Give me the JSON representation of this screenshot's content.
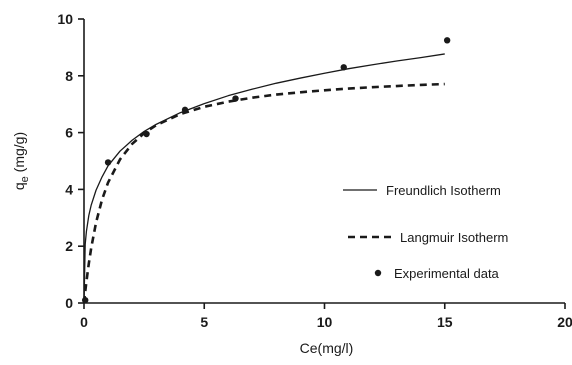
{
  "chart_data": {
    "type": "scatter",
    "xlabel": "Ce(mg/l)",
    "ylabel_main": "q",
    "ylabel_sub": "e",
    "ylabel_unit": " (mg/g)",
    "xlim": [
      0,
      20
    ],
    "ylim": [
      0,
      10
    ],
    "x_ticks": [
      0,
      5,
      10,
      15,
      20
    ],
    "y_ticks": [
      0,
      2,
      4,
      6,
      8,
      10
    ],
    "grid": false,
    "legend_position": "right",
    "series": [
      {
        "name": "Freundlich Isotherm",
        "kind": "line",
        "style": "solid",
        "x": [
          0.0,
          0.05,
          0.1,
          0.2,
          0.3,
          0.5,
          0.75,
          1.0,
          1.5,
          2.0,
          2.5,
          3.0,
          4.0,
          5.0,
          6.0,
          7.0,
          8.0,
          9.0,
          10.0,
          11.0,
          12.0,
          13.0,
          14.0,
          15.0
        ],
        "y": [
          0.0,
          2.07,
          2.52,
          3.08,
          3.45,
          3.97,
          4.44,
          4.83,
          5.35,
          5.73,
          6.04,
          6.29,
          6.7,
          7.02,
          7.3,
          7.53,
          7.74,
          7.92,
          8.09,
          8.25,
          8.39,
          8.52,
          8.64,
          8.77
        ]
      },
      {
        "name": "Langmuir Isotherm",
        "kind": "line",
        "style": "dashed",
        "x": [
          0.0,
          0.05,
          0.1,
          0.2,
          0.3,
          0.5,
          0.75,
          1.0,
          1.5,
          2.0,
          2.5,
          3.0,
          4.0,
          5.0,
          6.0,
          7.0,
          8.0,
          9.0,
          10.0,
          11.0,
          12.0,
          13.0,
          14.0,
          15.0
        ],
        "y": [
          0.0,
          0.39,
          0.75,
          1.39,
          1.94,
          2.83,
          3.64,
          4.24,
          5.06,
          5.6,
          5.98,
          6.26,
          6.65,
          6.91,
          7.09,
          7.23,
          7.34,
          7.42,
          7.49,
          7.55,
          7.6,
          7.64,
          7.68,
          7.71
        ]
      },
      {
        "name": "Experimental data",
        "kind": "scatter",
        "x": [
          0.05,
          1.0,
          2.6,
          4.2,
          6.3,
          10.8,
          15.1
        ],
        "y": [
          0.1,
          4.95,
          5.95,
          6.8,
          7.2,
          8.3,
          9.25
        ]
      }
    ]
  }
}
